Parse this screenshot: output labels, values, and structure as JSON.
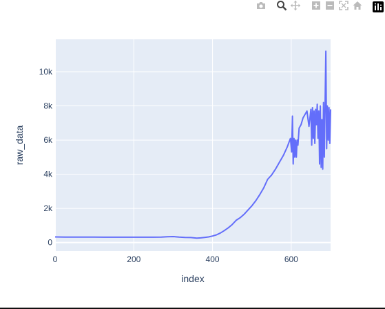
{
  "modebar": {
    "buttons": [
      {
        "name": "camera-icon",
        "active": false
      },
      {
        "name": "zoom-icon",
        "active": true
      },
      {
        "name": "pan-icon",
        "active": false
      },
      {
        "name": "zoom-in-icon",
        "active": false
      },
      {
        "name": "zoom-out-icon",
        "active": false
      },
      {
        "name": "autoscale-icon",
        "active": false
      },
      {
        "name": "home-icon",
        "active": false
      },
      {
        "name": "plotly-logo-icon",
        "active": false
      }
    ],
    "inactive_color": "#bbbbbb",
    "active_color": "#444444"
  },
  "chart_data": {
    "type": "line",
    "xlabel": "index",
    "ylabel": "raw_data",
    "xlim": [
      0,
      700
    ],
    "ylim": [
      -500,
      11900
    ],
    "xticks": [
      0,
      200,
      400,
      600
    ],
    "xtick_labels": [
      "0",
      "200",
      "400",
      "600"
    ],
    "yticks": [
      0,
      2000,
      4000,
      6000,
      8000,
      10000
    ],
    "ytick_labels": [
      "0",
      "2k",
      "4k",
      "6k",
      "8k",
      "10k"
    ],
    "grid": true,
    "colors": {
      "line": "#636efa",
      "plot_bg": "#e5ecf6",
      "grid": "#ffffff",
      "text": "#2a3f5f"
    },
    "series": [
      {
        "x": [
          0,
          25,
          50,
          75,
          100,
          125,
          150,
          175,
          200,
          225,
          250,
          270,
          285,
          300,
          315,
          330,
          345,
          360,
          370,
          380,
          390,
          400,
          410,
          420,
          430,
          440,
          450,
          460,
          470,
          480,
          490,
          500,
          510,
          520,
          530,
          540,
          550,
          560,
          570,
          580,
          590,
          598,
          601,
          603,
          605,
          607,
          609,
          611,
          613,
          615,
          617,
          620,
          625,
          630,
          635,
          640,
          645,
          650,
          652,
          654,
          656,
          658,
          660,
          662,
          664,
          666,
          668,
          670,
          672,
          674,
          676,
          678,
          680,
          682,
          684,
          686,
          688,
          690,
          692,
          694,
          696,
          698,
          700
        ],
        "y": [
          330,
          320,
          320,
          315,
          315,
          310,
          310,
          310,
          310,
          310,
          310,
          320,
          340,
          350,
          320,
          300,
          290,
          260,
          270,
          300,
          330,
          380,
          450,
          560,
          700,
          860,
          1050,
          1300,
          1450,
          1650,
          1900,
          2150,
          2450,
          2800,
          3200,
          3700,
          3950,
          4300,
          4700,
          5100,
          5600,
          6100,
          5300,
          7400,
          4600,
          6100,
          5000,
          6000,
          5000,
          6000,
          5700,
          6700,
          6900,
          7300,
          7500,
          7700,
          6800,
          7800,
          5700,
          7900,
          6100,
          7700,
          5800,
          7800,
          6900,
          8100,
          6100,
          7700,
          4600,
          8000,
          4400,
          7200,
          4300,
          8200,
          5000,
          8100,
          11200,
          5500,
          8000,
          6000,
          7900,
          5800,
          7800
        ]
      }
    ]
  }
}
